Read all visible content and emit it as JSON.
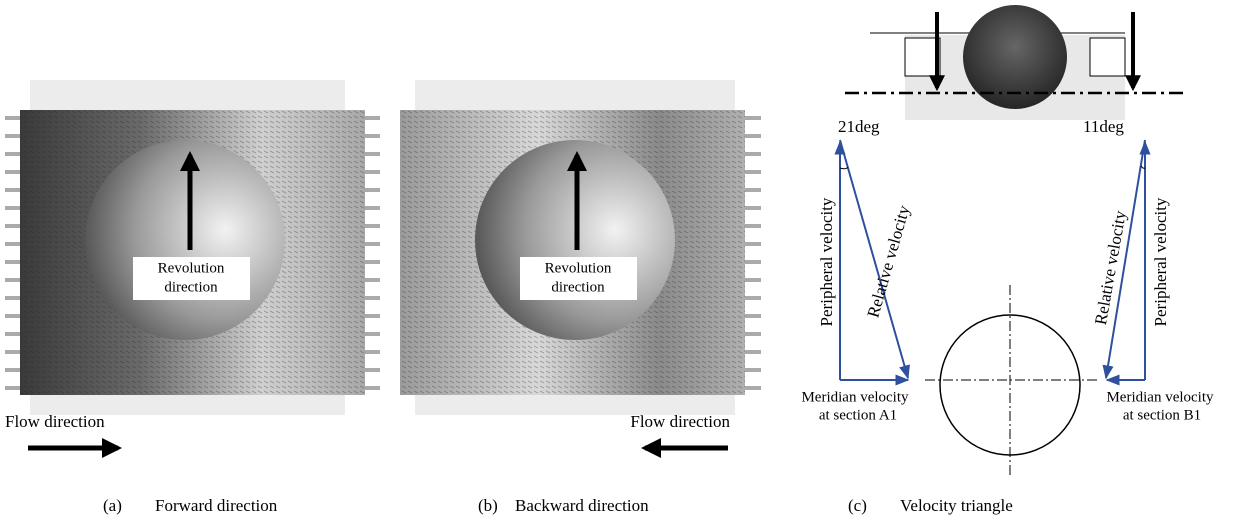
{
  "panels": [
    {
      "label": "(a)",
      "caption": "Forward direction",
      "revolution": [
        "Revolution",
        "direction"
      ],
      "flow": "Flow direction"
    },
    {
      "label": "(b)",
      "caption": "Backward direction",
      "revolution": [
        "Revolution",
        "direction"
      ],
      "flow": "Flow direction"
    },
    {
      "label": "(c)",
      "caption": "Velocity triangle"
    }
  ],
  "triangle": {
    "left": {
      "angle": "21deg",
      "peripheral": "Peripheral velocity",
      "relative": "Relative velocity",
      "meridian": [
        "Meridian velocity",
        "at section A1"
      ]
    },
    "right": {
      "angle": "11deg",
      "peripheral": "Peripheral velocity",
      "relative": "Relative velocity",
      "meridian": [
        "Meridian velocity",
        "at section B1"
      ]
    }
  }
}
